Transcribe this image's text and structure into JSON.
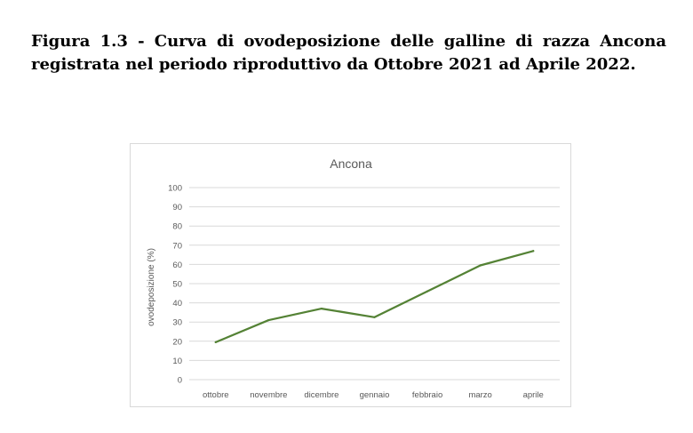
{
  "figure": {
    "caption": "Figura 1.3 - Curva di ovodeposizione delle galline di razza Ancona registrata nel periodo riproduttivo da Ottobre 2021 ad Aprile 2022."
  },
  "chart_data": {
    "type": "line",
    "title": "Ancona",
    "xlabel": "",
    "ylabel": "ovodeposizione (%)",
    "categories": [
      "ottobre",
      "novembre",
      "dicembre",
      "gennaio",
      "febbraio",
      "marzo",
      "aprile"
    ],
    "series": [
      {
        "values": [
          19.5,
          31,
          37,
          32.5,
          46,
          59.5,
          67
        ]
      }
    ],
    "ylim": [
      0,
      100
    ],
    "yticks": [
      0,
      10,
      20,
      30,
      40,
      50,
      60,
      70,
      80,
      90,
      100
    ],
    "grid": true,
    "legend": "none",
    "line_color": "#548235",
    "grid_color": "#d9d9d9",
    "text_color": "#595959"
  }
}
